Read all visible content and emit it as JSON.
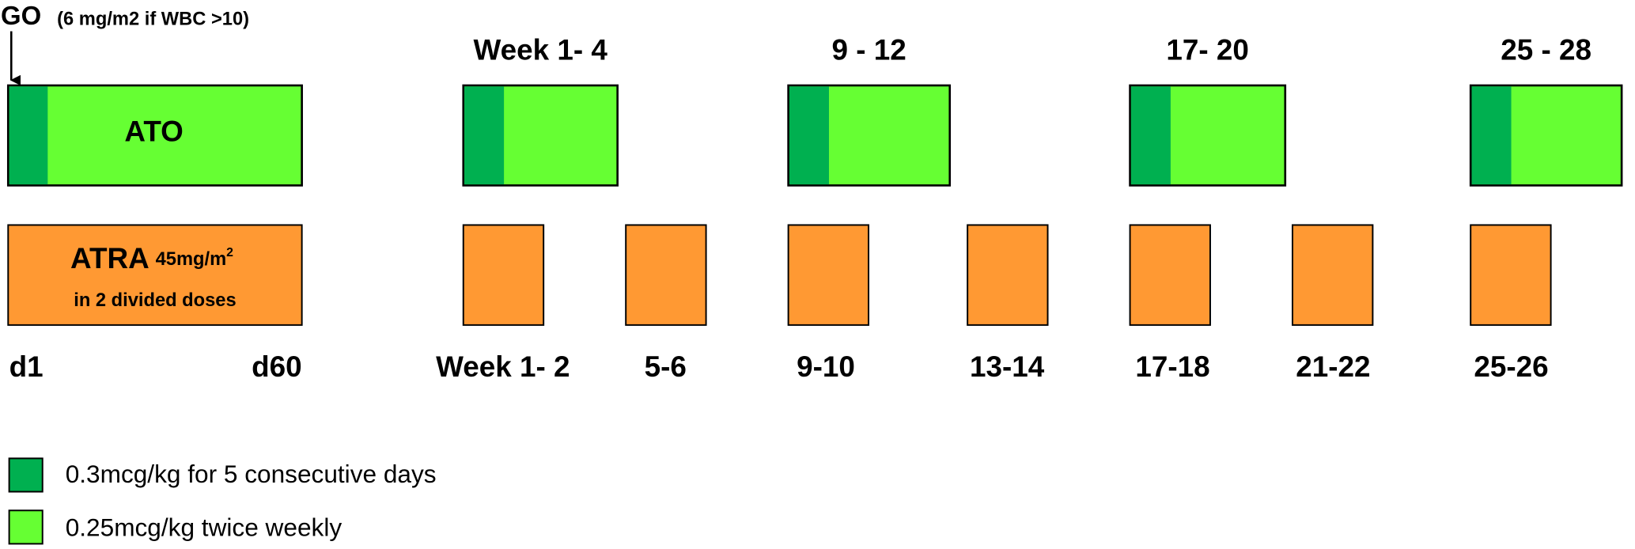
{
  "go": {
    "label": "GO",
    "note": "(6 mg/m2 if WBC >10)"
  },
  "ato": {
    "label": "ATO"
  },
  "atra": {
    "label": "ATRA",
    "dose": "45mg/m",
    "dose_sup": "2",
    "detail": "in 2 divided doses"
  },
  "ato_weeks": [
    "Week 1- 4",
    "9 - 12",
    "17- 20",
    "25 - 28"
  ],
  "bottom_labels": [
    "d1",
    "d60",
    "Week 1- 2",
    "5-6",
    "9-10",
    "13-14",
    "17-18",
    "21-22",
    "25-26"
  ],
  "legend": [
    "0.3mcg/kg for 5 consecutive days",
    "0.25mcg/kg twice weekly"
  ]
}
